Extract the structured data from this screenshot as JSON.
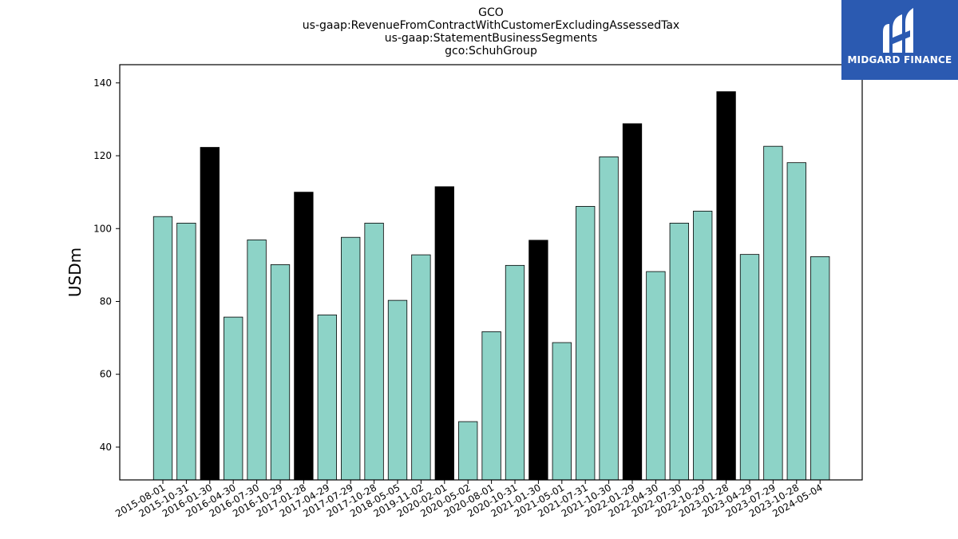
{
  "titles": {
    "line1": "GCO",
    "line2": "us-gaap:RevenueFromContractWithCustomerExcludingAssessedTax",
    "line3": "us-gaap:StatementBusinessSegments",
    "line4": "gco:SchuhGroup"
  },
  "logo": {
    "text": "MIDGARD FINANCE",
    "background": "#2b5ab1"
  },
  "chart_data": {
    "type": "bar",
    "title": "GCO us-gaap:RevenueFromContractWithCustomerExcludingAssessedTax us-gaap:StatementBusinessSegments gco:SchuhGroup",
    "xlabel": "",
    "ylabel": "USDm",
    "ylim": [
      31,
      145
    ],
    "yticks": [
      40,
      60,
      80,
      100,
      120,
      140
    ],
    "grid": false,
    "colors": {
      "default": "#8dd3c7",
      "highlight": "#000000",
      "edge": "#000000"
    },
    "categories": [
      "2015-08-01",
      "2015-10-31",
      "2016-01-30",
      "2016-04-30",
      "2016-07-30",
      "2016-10-29",
      "2017-01-28",
      "2017-04-29",
      "2017-07-29",
      "2017-10-28",
      "2018-05-05",
      "2019-11-02",
      "2020-02-01",
      "2020-05-02",
      "2020-08-01",
      "2020-10-31",
      "2021-01-30",
      "2021-05-01",
      "2021-07-31",
      "2021-10-30",
      "2022-01-29",
      "2022-04-30",
      "2022-07-30",
      "2022-10-29",
      "2023-01-28",
      "2023-04-29",
      "2023-07-29",
      "2023-10-28",
      "2024-05-04"
    ],
    "values": [
      103.3,
      101.5,
      122.3,
      75.7,
      96.9,
      90.1,
      110.0,
      76.3,
      97.6,
      101.5,
      80.3,
      92.8,
      111.5,
      47.0,
      71.7,
      89.9,
      96.8,
      68.7,
      106.1,
      119.7,
      128.8,
      88.2,
      101.5,
      104.8,
      137.6,
      92.9,
      122.6,
      118.1,
      92.3
    ],
    "highlighted": [
      false,
      false,
      true,
      false,
      false,
      false,
      true,
      false,
      false,
      false,
      false,
      false,
      true,
      false,
      false,
      false,
      true,
      false,
      false,
      false,
      true,
      false,
      false,
      false,
      true,
      false,
      false,
      false,
      false
    ]
  }
}
